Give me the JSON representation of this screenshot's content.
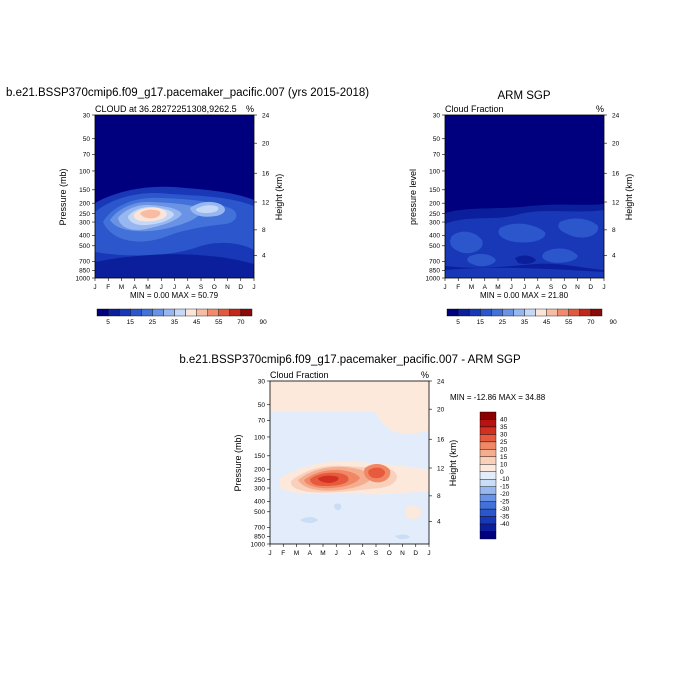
{
  "page": {
    "top_left_title": "b.e21.BSSP370cmip6.f09_g17.pacemaker_pacific.007 (yrs 2015-2018)",
    "top_right_title": "ARM SGP",
    "bottom_title": "b.e21.BSSP370cmip6.f09_g17.pacemaker_pacific.007 - ARM SGP"
  },
  "month_labels": [
    "J",
    "F",
    "M",
    "A",
    "M",
    "J",
    "J",
    "A",
    "S",
    "O",
    "N",
    "D",
    "J"
  ],
  "pressure_ticks": [
    "30",
    "50",
    "70",
    "100",
    "150",
    "200",
    "250",
    "300",
    "400",
    "500",
    "700",
    "850",
    "1000"
  ],
  "height_ticks": [
    "24",
    "20",
    "16",
    "12",
    "8",
    "4"
  ],
  "chart_data": [
    {
      "id": "model",
      "type": "heatmap",
      "title": "b.e21.BSSP370cmip6.f09_g17.pacemaker_pacific.007 (yrs 2015-2018)",
      "subtitle_left": "CLOUD at 36.28272251308,9262.5",
      "subtitle_right": "%",
      "ylabel": "Pressure (mb)",
      "ylabel_right": "Height (km)",
      "min_max_text": "MIN =   0.00 MAX =  50.79",
      "x": [
        "J",
        "F",
        "M",
        "A",
        "M",
        "J",
        "J",
        "A",
        "S",
        "O",
        "N",
        "D",
        "J"
      ],
      "y_pressure_mb": [
        30,
        50,
        70,
        100,
        150,
        200,
        250,
        300,
        400,
        500,
        700,
        850,
        1000
      ],
      "min": 0.0,
      "max": 50.79,
      "colorbar_labels": [
        "5",
        "15",
        "25",
        "35",
        "45",
        "55",
        "70",
        "90"
      ]
    },
    {
      "id": "obs",
      "type": "heatmap",
      "title": "ARM SGP",
      "subtitle_left": "Cloud Fraction",
      "subtitle_right": "%",
      "ylabel": "pressure level",
      "ylabel_right": "Height (km)",
      "min_max_text": "MIN =   0.00 MAX =  21.80",
      "x": [
        "J",
        "F",
        "M",
        "A",
        "M",
        "J",
        "J",
        "A",
        "S",
        "O",
        "N",
        "D",
        "J"
      ],
      "y_pressure_mb": [
        30,
        50,
        70,
        100,
        150,
        200,
        250,
        300,
        400,
        500,
        700,
        850,
        1000
      ],
      "min": 0.0,
      "max": 21.8,
      "colorbar_labels": [
        "5",
        "15",
        "25",
        "35",
        "45",
        "55",
        "70",
        "90"
      ]
    },
    {
      "id": "diff",
      "type": "heatmap",
      "title": "b.e21.BSSP370cmip6.f09_g17.pacemaker_pacific.007 - ARM SGP",
      "subtitle_left": "Cloud Fraction",
      "subtitle_right": "%",
      "ylabel": "Pressure (mb)",
      "ylabel_right": "Height (km)",
      "min_max_text": "MIN = -12.86 MAX =  34.88",
      "x": [
        "J",
        "F",
        "M",
        "A",
        "M",
        "J",
        "J",
        "A",
        "S",
        "O",
        "N",
        "D",
        "J"
      ],
      "y_pressure_mb": [
        30,
        50,
        70,
        100,
        150,
        200,
        250,
        300,
        400,
        500,
        700,
        850,
        1000
      ],
      "min": -12.86,
      "max": 34.88,
      "colorbar_labels": [
        "40",
        "35",
        "30",
        "25",
        "20",
        "15",
        "10",
        "0",
        "-10",
        "-15",
        "-20",
        "-25",
        "-30",
        "-35",
        "-40"
      ]
    }
  ],
  "colors": {
    "abs_scale": [
      "#00007f",
      "#0b1f9c",
      "#1838b8",
      "#2b56cc",
      "#4271d9",
      "#6a93e6",
      "#97b7f0",
      "#c6d8f7",
      "#fbe5d8",
      "#f7bca3",
      "#f08c6d",
      "#e15a3e",
      "#c3261b",
      "#8b0a0a"
    ],
    "diff_scale": [
      "#00007f",
      "#0b1f9c",
      "#1838b8",
      "#2b56cc",
      "#4271d9",
      "#6a93e6",
      "#97b7f0",
      "#c9ddf6",
      "#e2ecfb",
      "#fde9dc",
      "#f9d0bb",
      "#f5ad8f",
      "#f08866",
      "#e85a3d",
      "#d23020",
      "#b61311",
      "#8b0000"
    ]
  }
}
